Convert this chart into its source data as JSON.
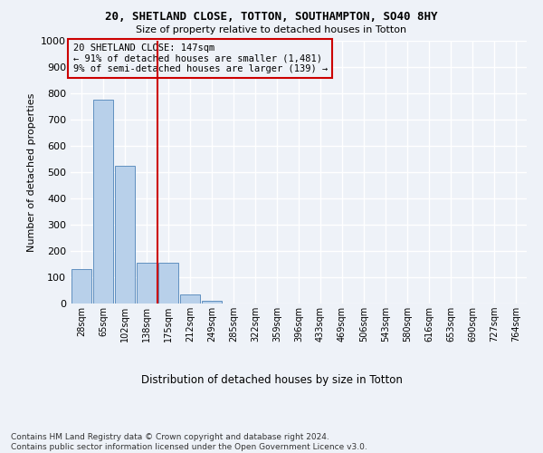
{
  "title1": "20, SHETLAND CLOSE, TOTTON, SOUTHAMPTON, SO40 8HY",
  "title2": "Size of property relative to detached houses in Totton",
  "xlabel": "Distribution of detached houses by size in Totton",
  "ylabel": "Number of detached properties",
  "categories": [
    "28sqm",
    "65sqm",
    "102sqm",
    "138sqm",
    "175sqm",
    "212sqm",
    "249sqm",
    "285sqm",
    "322sqm",
    "359sqm",
    "396sqm",
    "433sqm",
    "469sqm",
    "506sqm",
    "543sqm",
    "580sqm",
    "616sqm",
    "653sqm",
    "690sqm",
    "727sqm",
    "764sqm"
  ],
  "values": [
    130,
    775,
    525,
    155,
    155,
    35,
    10,
    0,
    0,
    0,
    0,
    0,
    0,
    0,
    0,
    0,
    0,
    0,
    0,
    0,
    0
  ],
  "bar_color": "#b8d0ea",
  "bar_edge_color": "#6090c0",
  "vline_x_index": 3,
  "vline_color": "#cc0000",
  "annotation_text": "20 SHETLAND CLOSE: 147sqm\n← 91% of detached houses are smaller (1,481)\n9% of semi-detached houses are larger (139) →",
  "annotation_box_color": "#cc0000",
  "ylim": [
    0,
    1000
  ],
  "yticks": [
    0,
    100,
    200,
    300,
    400,
    500,
    600,
    700,
    800,
    900,
    1000
  ],
  "footnote": "Contains HM Land Registry data © Crown copyright and database right 2024.\nContains public sector information licensed under the Open Government Licence v3.0.",
  "background_color": "#eef2f8",
  "grid_color": "#ffffff"
}
